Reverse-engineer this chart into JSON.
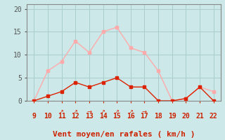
{
  "x": [
    9,
    10,
    11,
    12,
    13,
    14,
    15,
    16,
    17,
    18,
    19,
    20,
    21,
    22
  ],
  "rafales": [
    0,
    6.5,
    8.5,
    13,
    10.5,
    15,
    16,
    11.5,
    10.5,
    6.5,
    0,
    0.5,
    3,
    2
  ],
  "moyen": [
    0,
    1,
    2,
    4,
    3,
    4,
    5,
    3,
    3,
    0,
    0,
    0.5,
    3,
    0
  ],
  "wind_dirs_angle": [
    null,
    null,
    45,
    45,
    0,
    45,
    45,
    45,
    0,
    null,
    null,
    null,
    null,
    null
  ],
  "color_rafales": "#ffaaaa",
  "color_moyen": "#dd2200",
  "bg_color": "#cce8e8",
  "grid_color": "#aacccc",
  "xlabel": "Vent moyen/en rafales ( km/h )",
  "ylabel_ticks": [
    0,
    5,
    10,
    15,
    20
  ],
  "xlim": [
    8.5,
    22.5
  ],
  "ylim": [
    -0.5,
    21
  ],
  "xlabel_fontsize": 8,
  "tick_fontsize": 7
}
